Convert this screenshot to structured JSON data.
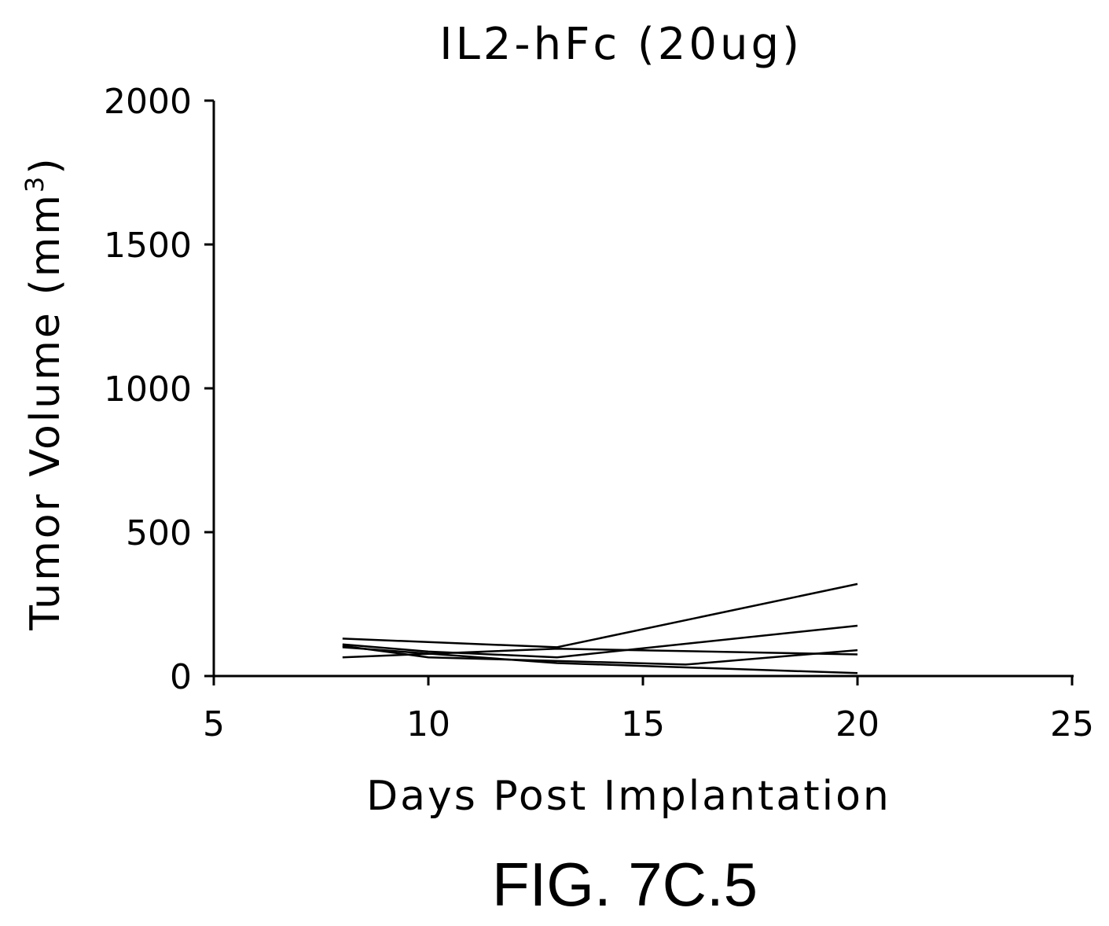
{
  "chart_data": {
    "type": "line",
    "title": "IL2-hFc (20ug)",
    "xlabel": "Days Post Implantation",
    "ylabel": "Tumor Volume (mm",
    "ylabel_superscript": "3",
    "ylabel_suffix": ")",
    "xlim": [
      5,
      25
    ],
    "ylim": [
      0,
      2000
    ],
    "xticks": [
      5,
      10,
      15,
      20,
      25
    ],
    "yticks": [
      0,
      500,
      1000,
      1500,
      2000
    ],
    "grid": false,
    "series": [
      {
        "x": [
          8,
          13,
          20
        ],
        "y": [
          130,
          100,
          320
        ]
      },
      {
        "x": [
          8,
          10,
          13,
          20
        ],
        "y": [
          110,
          85,
          65,
          175
        ]
      },
      {
        "x": [
          8,
          10,
          16,
          20
        ],
        "y": [
          105,
          65,
          40,
          90
        ]
      },
      {
        "x": [
          8,
          13,
          20
        ],
        "y": [
          65,
          95,
          75
        ]
      },
      {
        "x": [
          8,
          13,
          20
        ],
        "y": [
          100,
          45,
          10
        ]
      }
    ]
  },
  "figure_label": "FIG. 7C.5"
}
